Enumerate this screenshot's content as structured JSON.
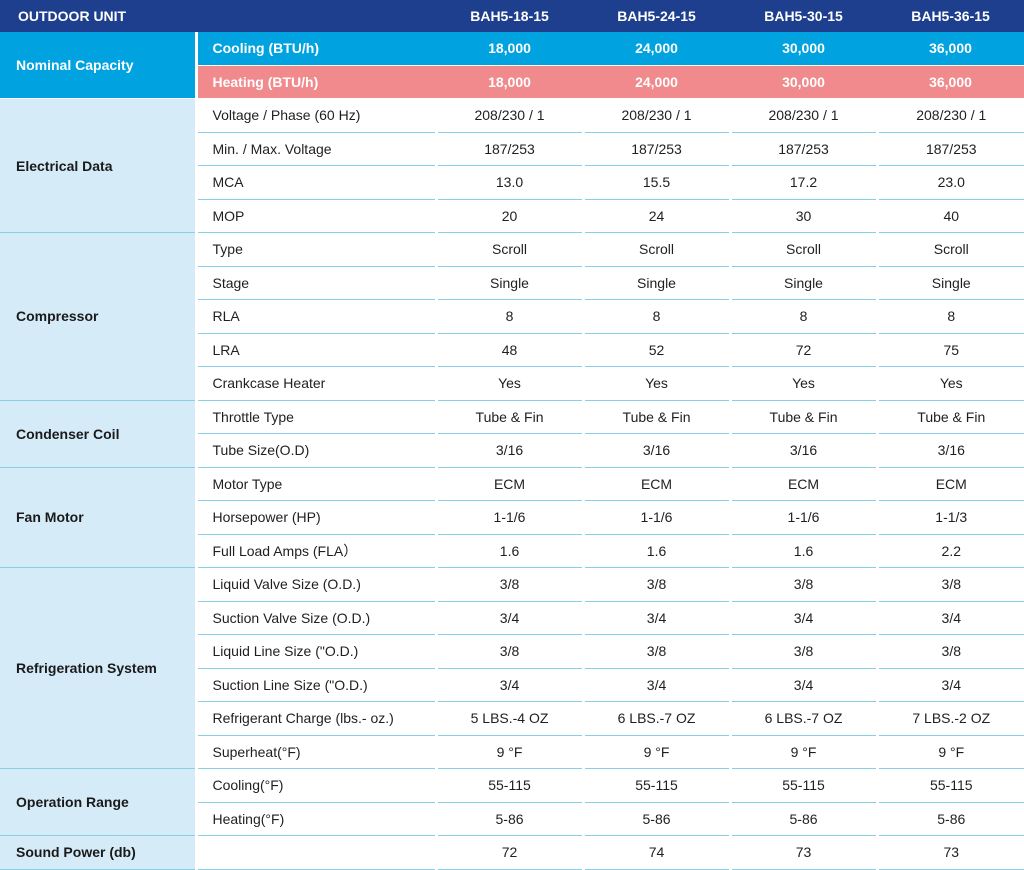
{
  "table": {
    "corner": "OUTDOOR UNIT",
    "models": [
      "BAH5-18-15",
      "BAH5-24-15",
      "BAH5-30-15",
      "BAH5-36-15"
    ],
    "groups": [
      {
        "name": "Nominal Capacity",
        "rows": [
          {
            "label": "Cooling (BTU/h)",
            "style": "cool",
            "values": [
              "18,000",
              "24,000",
              "30,000",
              "36,000"
            ]
          },
          {
            "label": "Heating (BTU/h)",
            "style": "heat",
            "values": [
              "18,000",
              "24,000",
              "30,000",
              "36,000"
            ]
          }
        ]
      },
      {
        "name": "Electrical Data",
        "rows": [
          {
            "label": "Voltage / Phase (60 Hz)",
            "values": [
              "208/230 / 1",
              "208/230 / 1",
              "208/230 / 1",
              "208/230 / 1"
            ]
          },
          {
            "label": "Min. / Max. Voltage",
            "values": [
              "187/253",
              "187/253",
              "187/253",
              "187/253"
            ]
          },
          {
            "label": "MCA",
            "values": [
              "13.0",
              "15.5",
              "17.2",
              "23.0"
            ]
          },
          {
            "label": "MOP",
            "values": [
              "20",
              "24",
              "30",
              "40"
            ]
          }
        ]
      },
      {
        "name": "Compressor",
        "rows": [
          {
            "label": "Type",
            "values": [
              "Scroll",
              "Scroll",
              "Scroll",
              "Scroll"
            ]
          },
          {
            "label": "Stage",
            "values": [
              "Single",
              "Single",
              "Single",
              "Single"
            ]
          },
          {
            "label": "RLA",
            "values": [
              "8",
              "8",
              "8",
              "8"
            ]
          },
          {
            "label": "LRA",
            "values": [
              "48",
              "52",
              "72",
              "75"
            ]
          },
          {
            "label": "Crankcase Heater",
            "values": [
              "Yes",
              "Yes",
              "Yes",
              "Yes"
            ]
          }
        ]
      },
      {
        "name": "Condenser Coil",
        "rows": [
          {
            "label": "Throttle Type",
            "values": [
              "Tube & Fin",
              "Tube & Fin",
              "Tube & Fin",
              "Tube & Fin"
            ]
          },
          {
            "label": "Tube Size(O.D)",
            "values": [
              "3/16",
              "3/16",
              "3/16",
              "3/16"
            ]
          }
        ]
      },
      {
        "name": "Fan Motor",
        "rows": [
          {
            "label": "Motor Type",
            "values": [
              "ECM",
              "ECM",
              "ECM",
              "ECM"
            ]
          },
          {
            "label": "Horsepower (HP)",
            "values": [
              "1-1/6",
              "1-1/6",
              "1-1/6",
              "1-1/3"
            ]
          },
          {
            "label": "Full Load Amps (FLA）",
            "values": [
              "1.6",
              "1.6",
              "1.6",
              "2.2"
            ]
          }
        ]
      },
      {
        "name": "Refrigeration System",
        "rows": [
          {
            "label": "Liquid Valve Size (O.D.)",
            "values": [
              "3/8",
              "3/8",
              "3/8",
              "3/8"
            ]
          },
          {
            "label": "Suction Valve Size (O.D.)",
            "values": [
              "3/4",
              "3/4",
              "3/4",
              "3/4"
            ]
          },
          {
            "label": "Liquid Line Size (\"O.D.)",
            "values": [
              "3/8",
              "3/8",
              "3/8",
              "3/8"
            ]
          },
          {
            "label": "Suction Line Size (\"O.D.)",
            "values": [
              "3/4",
              "3/4",
              "3/4",
              "3/4"
            ]
          },
          {
            "label": "Refrigerant Charge (lbs.- oz.)",
            "values": [
              "5 LBS.-4 OZ",
              "6 LBS.-7 OZ",
              "6 LBS.-7 OZ",
              "7 LBS.-2 OZ"
            ]
          },
          {
            "label": "Superheat(°F)",
            "values": [
              "9 °F",
              "9 °F",
              "9 °F",
              "9 °F"
            ]
          }
        ]
      },
      {
        "name": "Operation Range",
        "rows": [
          {
            "label": "Cooling(°F)",
            "values": [
              "55-115",
              "55-115",
              "55-115",
              "55-115"
            ]
          },
          {
            "label": "Heating(°F)",
            "values": [
              "5-86",
              "5-86",
              "5-86",
              "5-86"
            ]
          }
        ]
      },
      {
        "name": "Sound Power (db)",
        "rows": [
          {
            "label": "",
            "values": [
              "72",
              "74",
              "73",
              "73"
            ]
          }
        ]
      }
    ]
  }
}
